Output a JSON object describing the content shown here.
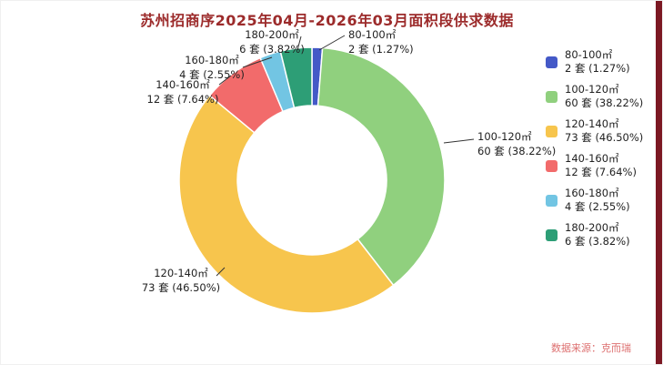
{
  "title": "苏州招商序2025年04月-2026年03月面积段供求数据",
  "source": "数据来源：克而瑞",
  "chart_data": {
    "type": "pie",
    "subtype": "donut",
    "title": "苏州招商序2025年04月-2026年03月面积段供求数据",
    "unit": "套",
    "legend_position": "right",
    "slices": [
      {
        "name": "80-100㎡",
        "value": 2,
        "pct": 1.27,
        "color": "#4459c7",
        "label_line1": "80-100㎡",
        "label_line2": "2 套 (1.27%)"
      },
      {
        "name": "100-120㎡",
        "value": 60,
        "pct": 38.22,
        "color": "#90d07e",
        "label_line1": "100-120㎡",
        "label_line2": "60 套 (38.22%)"
      },
      {
        "name": "120-140㎡",
        "value": 73,
        "pct": 46.5,
        "color": "#f7c54d",
        "label_line1": "120-140㎡",
        "label_line2": "73 套 (46.50%)"
      },
      {
        "name": "140-160㎡",
        "value": 12,
        "pct": 7.64,
        "color": "#f26b6b",
        "label_line1": "140-160㎡",
        "label_line2": "12 套 (7.64%)"
      },
      {
        "name": "160-180㎡",
        "value": 4,
        "pct": 2.55,
        "color": "#72c5e3",
        "label_line1": "160-180㎡",
        "label_line2": "4 套 (2.55%)"
      },
      {
        "name": "180-200㎡",
        "value": 6,
        "pct": 3.82,
        "color": "#2d9e76",
        "label_line1": "180-200㎡",
        "label_line2": "6 套 (3.82%)"
      }
    ]
  }
}
